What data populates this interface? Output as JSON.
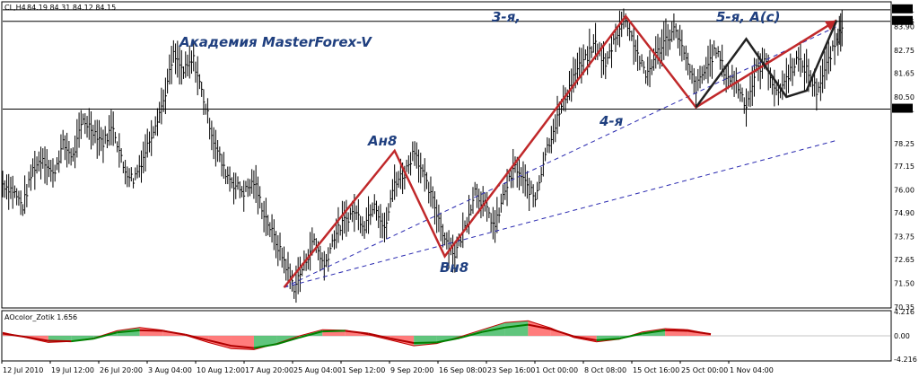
{
  "header": {
    "symbol": "CL,H4",
    "quote": "84.19 84.31 84.12 84.15"
  },
  "indicator": {
    "label": "AOcolor_Zotik 1.656"
  },
  "annotations": {
    "academy": "Академия MasterForex-V",
    "an8": "Ан8",
    "vn8": "Вн8",
    "third": "3-я,",
    "fourth": "4-я",
    "fifth": "5-я, А(с)"
  },
  "colors": {
    "wave": "#c0282a",
    "price": "#000000",
    "trendline": "#2a2ab0",
    "annotation": "#1f3f7f",
    "histogram_red": "#ff6e6e",
    "histogram_green": "#4fbf6f",
    "ma_red": "#b00000",
    "ma_green": "#008000"
  },
  "chart_data": [
    {
      "type": "line",
      "title": "",
      "y_ticks": [
        "84.71",
        "84.15",
        "83.90",
        "82.75",
        "81.65",
        "80.50",
        "79.91",
        "78.25",
        "77.15",
        "76.00",
        "74.90",
        "73.75",
        "72.65",
        "71.50",
        "70.35"
      ],
      "x_ticks": [
        "12 Jul 2010",
        "19 Jul 12:00",
        "26 Jul 20:00",
        "3 Aug 04:00",
        "10 Aug 12:00",
        "17 Aug 20:00",
        "25 Aug 04:00",
        "1 Sep 12:00",
        "9 Sep 20:00",
        "16 Sep 08:00",
        "23 Sep 16:00",
        "1 Oct 00:00",
        "8 Oct 08:00",
        "15 Oct 16:00",
        "25 Oct 00:00",
        "1 Nov 04:00"
      ],
      "ylim": [
        70.35,
        85.05
      ],
      "horizontal_levels": [
        84.71,
        84.15,
        79.91
      ],
      "price_path": [
        [
          0,
          76.3
        ],
        [
          3,
          76.0
        ],
        [
          6,
          75.2
        ],
        [
          9,
          77.0
        ],
        [
          12,
          77.6
        ],
        [
          15,
          76.7
        ],
        [
          18,
          78.2
        ],
        [
          21,
          77.6
        ],
        [
          24,
          79.4
        ],
        [
          27,
          78.9
        ],
        [
          30,
          78.3
        ],
        [
          33,
          79.1
        ],
        [
          36,
          77.1
        ],
        [
          39,
          76.5
        ],
        [
          42,
          77.6
        ],
        [
          45,
          79.0
        ],
        [
          48,
          80.3
        ],
        [
          51,
          82.5
        ],
        [
          54,
          81.7
        ],
        [
          57,
          82.3
        ],
        [
          60,
          80.4
        ],
        [
          63,
          78.4
        ],
        [
          66,
          77.0
        ],
        [
          69,
          76.3
        ],
        [
          72,
          75.9
        ],
        [
          75,
          76.4
        ],
        [
          78,
          74.9
        ],
        [
          81,
          73.7
        ],
        [
          84,
          72.6
        ],
        [
          87,
          71.3
        ],
        [
          90,
          72.4
        ],
        [
          93,
          73.6
        ],
        [
          96,
          72.3
        ],
        [
          99,
          73.8
        ],
        [
          102,
          74.5
        ],
        [
          105,
          75.0
        ],
        [
          108,
          74.3
        ],
        [
          111,
          75.5
        ],
        [
          114,
          74.0
        ],
        [
          117,
          76.4
        ],
        [
          120,
          76.8
        ],
        [
          123,
          78.0
        ],
        [
          126,
          76.5
        ],
        [
          129,
          75.2
        ],
        [
          132,
          73.7
        ],
        [
          135,
          72.9
        ],
        [
          138,
          74.2
        ],
        [
          141,
          76.0
        ],
        [
          144,
          75.2
        ],
        [
          147,
          74.2
        ],
        [
          150,
          76.0
        ],
        [
          153,
          77.1
        ],
        [
          156,
          76.3
        ],
        [
          159,
          75.6
        ],
        [
          162,
          77.8
        ],
        [
          165,
          79.2
        ],
        [
          168,
          80.5
        ],
        [
          171,
          81.7
        ],
        [
          174,
          82.3
        ],
        [
          177,
          83.1
        ],
        [
          180,
          82.0
        ],
        [
          183,
          83.5
        ],
        [
          186,
          84.3
        ],
        [
          189,
          82.8
        ],
        [
          192,
          81.5
        ],
        [
          195,
          82.5
        ],
        [
          198,
          83.3
        ],
        [
          201,
          83.8
        ],
        [
          204,
          82.2
        ],
        [
          207,
          80.9
        ],
        [
          210,
          81.9
        ],
        [
          213,
          82.8
        ],
        [
          216,
          81.5
        ],
        [
          219,
          81.2
        ],
        [
          222,
          80.1
        ],
        [
          225,
          81.8
        ],
        [
          228,
          82.2
        ],
        [
          231,
          80.6
        ],
        [
          234,
          81.4
        ],
        [
          237,
          82.3
        ],
        [
          240,
          81.8
        ],
        [
          243,
          80.8
        ],
        [
          246,
          82.0
        ],
        [
          249,
          83.2
        ],
        [
          251,
          84.15
        ]
      ],
      "waves": [
        {
          "name": "red",
          "points": [
            [
              84,
              71.3
            ],
            [
              117,
              77.9
            ],
            [
              132,
              72.8
            ],
            [
              186,
              84.4
            ],
            [
              207,
              80.0
            ],
            [
              249,
              84.2
            ]
          ]
        },
        {
          "name": "black",
          "points": [
            [
              207,
              80.0
            ],
            [
              222,
              83.3
            ],
            [
              234,
              80.5
            ],
            [
              240,
              80.8
            ],
            [
              249,
              84.2
            ]
          ]
        }
      ],
      "trendlines": [
        {
          "from": [
            84,
            71.3
          ],
          "to": [
            249,
            83.9
          ]
        },
        {
          "from": [
            84,
            71.3
          ],
          "to": [
            249,
            78.4
          ]
        }
      ]
    },
    {
      "type": "bar",
      "title": "",
      "y_ticks": [
        "0.00",
        "-4.216"
      ],
      "ylim": [
        -4.216,
        4.216
      ],
      "ma_values": [
        0.4,
        -0.2,
        -0.9,
        -1.0,
        -0.5,
        0.6,
        1.0,
        0.9,
        0.2,
        -0.8,
        -1.8,
        -2.2,
        -1.5,
        -0.3,
        0.8,
        0.9,
        0.4,
        -0.5,
        -1.3,
        -1.2,
        -0.4,
        0.7,
        1.5,
        2.0,
        1.2,
        -0.1,
        -0.8,
        -0.5,
        0.4,
        1.0,
        0.9,
        0.3
      ],
      "histogram": [
        0.6,
        -0.3,
        -1.2,
        -1.0,
        -0.4,
        0.9,
        1.5,
        1.0,
        0.1,
        -1.2,
        -2.3,
        -2.5,
        -1.4,
        0.0,
        1.1,
        1.0,
        0.2,
        -0.8,
        -1.8,
        -1.4,
        -0.2,
        1.1,
        2.4,
        2.7,
        1.4,
        -0.3,
        -1.1,
        -0.6,
        0.7,
        1.3,
        1.1,
        0.3
      ]
    }
  ]
}
